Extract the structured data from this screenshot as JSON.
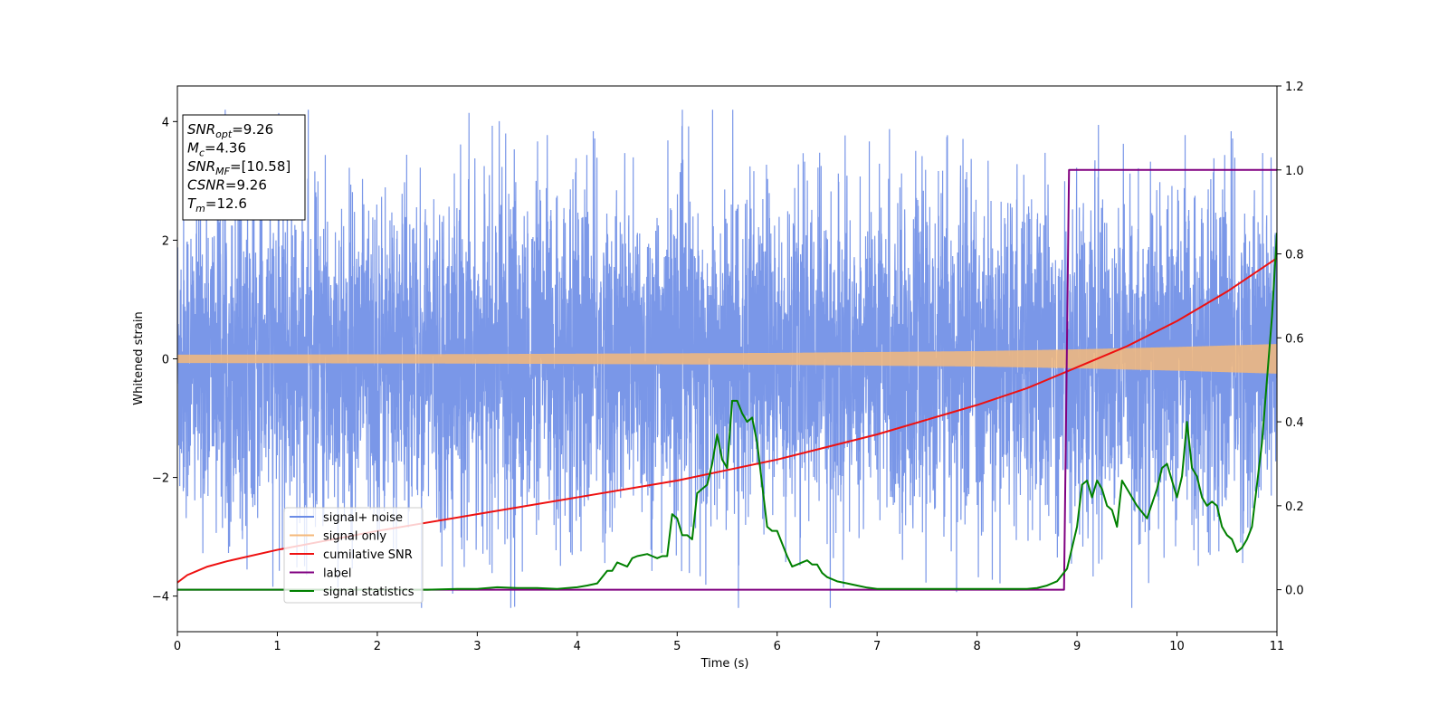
{
  "chart_data": {
    "type": "line",
    "xlabel": "Time (s)",
    "ylabel": "Whitened strain",
    "xlim": [
      0,
      11
    ],
    "ylim_left": [
      -4.6,
      4.6
    ],
    "ylim_right": [
      -0.1,
      1.2
    ],
    "x_ticks": [
      "0",
      "1",
      "2",
      "3",
      "4",
      "5",
      "6",
      "7",
      "8",
      "9",
      "10",
      "11"
    ],
    "y_ticks_left": [
      "−4",
      "−2",
      "0",
      "2",
      "4"
    ],
    "y_ticks_right": [
      "0.0",
      "0.2",
      "0.4",
      "0.6",
      "0.8",
      "1.0",
      "1.2"
    ],
    "info_box": [
      {
        "base": "SNR",
        "sub": "opt",
        "value": "=9.26"
      },
      {
        "base": "M",
        "sub": "c",
        "value": "=4.36"
      },
      {
        "base": "SNR",
        "sub": "MF",
        "value": "=[10.58]"
      },
      {
        "base": "CSNR",
        "sub": "",
        "value": "=9.26"
      },
      {
        "base": "T",
        "sub": "m",
        "value": "=12.6"
      }
    ],
    "legend_position": "lower-left",
    "series": [
      {
        "name": "signal+ noise",
        "color": "#6b8ce6",
        "axis": "left",
        "description_type": "noise",
        "amplitude_typical": 1.5,
        "amplitude_extreme": 4.2
      },
      {
        "name": "signal only",
        "color": "#f5b97a",
        "axis": "left",
        "description_type": "chirp",
        "envelope_x": [
          0,
          3,
          6,
          8,
          9,
          10,
          11
        ],
        "envelope_y": [
          0.07,
          0.08,
          0.1,
          0.13,
          0.16,
          0.2,
          0.25
        ]
      },
      {
        "name": "cumilative SNR",
        "color": "#ee1111",
        "axis": "right",
        "x": [
          0,
          0.1,
          0.3,
          0.5,
          1,
          2,
          3,
          4,
          5,
          6,
          7,
          8,
          8.5,
          9,
          9.5,
          10,
          10.5,
          11
        ],
        "y": [
          0.017,
          0.035,
          0.055,
          0.068,
          0.095,
          0.14,
          0.18,
          0.22,
          0.26,
          0.31,
          0.37,
          0.44,
          0.48,
          0.53,
          0.58,
          0.64,
          0.71,
          0.79
        ]
      },
      {
        "name": "label",
        "color": "#800080",
        "axis": "right",
        "x": [
          0,
          8.87,
          8.92,
          11
        ],
        "y": [
          0,
          0,
          1,
          1
        ]
      },
      {
        "name": "signal statistics",
        "color": "#008000",
        "axis": "right",
        "x": [
          0,
          0.5,
          1,
          1.5,
          2,
          2.5,
          2.8,
          3,
          3.2,
          3.4,
          3.6,
          3.8,
          4,
          4.1,
          4.2,
          4.3,
          4.35,
          4.4,
          4.5,
          4.55,
          4.6,
          4.7,
          4.75,
          4.8,
          4.85,
          4.9,
          4.95,
          5,
          5.05,
          5.1,
          5.15,
          5.2,
          5.25,
          5.3,
          5.35,
          5.4,
          5.45,
          5.5,
          5.55,
          5.6,
          5.65,
          5.7,
          5.75,
          5.8,
          5.85,
          5.9,
          5.95,
          6,
          6.05,
          6.1,
          6.15,
          6.2,
          6.25,
          6.3,
          6.35,
          6.4,
          6.45,
          6.5,
          6.6,
          6.7,
          6.8,
          6.9,
          7,
          7.5,
          8,
          8.5,
          8.6,
          8.7,
          8.8,
          8.9,
          8.95,
          9,
          9.05,
          9.1,
          9.15,
          9.2,
          9.25,
          9.3,
          9.35,
          9.4,
          9.45,
          9.5,
          9.6,
          9.7,
          9.8,
          9.85,
          9.9,
          9.95,
          10,
          10.05,
          10.1,
          10.15,
          10.2,
          10.25,
          10.3,
          10.35,
          10.4,
          10.45,
          10.5,
          10.55,
          10.6,
          10.65,
          10.7,
          10.75,
          10.8,
          10.85,
          10.9,
          10.95,
          11
        ],
        "y": [
          0,
          0,
          0,
          0,
          0,
          0,
          0.002,
          0.002,
          0.006,
          0.004,
          0.004,
          0.002,
          0.006,
          0.01,
          0.015,
          0.045,
          0.045,
          0.065,
          0.055,
          0.075,
          0.08,
          0.085,
          0.08,
          0.075,
          0.08,
          0.08,
          0.18,
          0.17,
          0.13,
          0.13,
          0.12,
          0.23,
          0.24,
          0.25,
          0.3,
          0.37,
          0.31,
          0.29,
          0.45,
          0.45,
          0.42,
          0.4,
          0.41,
          0.35,
          0.25,
          0.15,
          0.14,
          0.14,
          0.11,
          0.08,
          0.055,
          0.06,
          0.065,
          0.07,
          0.06,
          0.06,
          0.04,
          0.03,
          0.02,
          0.015,
          0.01,
          0.005,
          0.002,
          0.002,
          0.002,
          0.002,
          0.004,
          0.01,
          0.02,
          0.05,
          0.1,
          0.15,
          0.25,
          0.26,
          0.22,
          0.26,
          0.24,
          0.2,
          0.19,
          0.15,
          0.26,
          0.24,
          0.2,
          0.17,
          0.24,
          0.29,
          0.3,
          0.26,
          0.22,
          0.27,
          0.4,
          0.29,
          0.27,
          0.22,
          0.2,
          0.21,
          0.2,
          0.15,
          0.13,
          0.12,
          0.09,
          0.1,
          0.12,
          0.15,
          0.25,
          0.35,
          0.5,
          0.65,
          0.85
        ]
      }
    ]
  }
}
